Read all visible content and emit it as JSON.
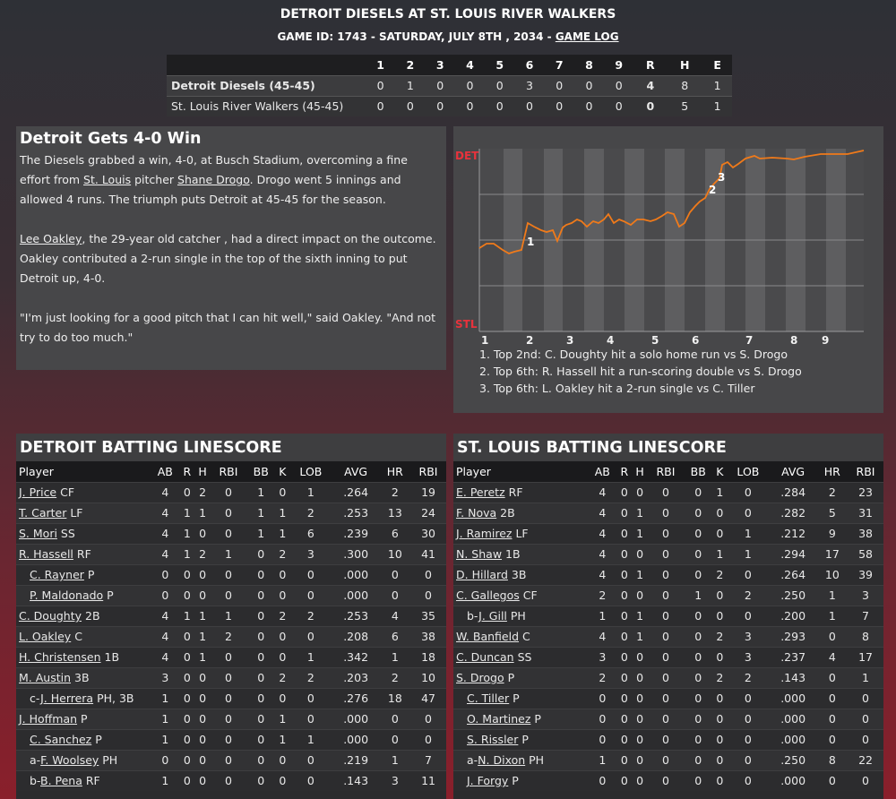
{
  "header": {
    "title": "DETROIT DIESELS AT ST. LOUIS RIVER WALKERS",
    "subtitle_prefix": "GAME ID: 1743 - SATURDAY, JULY 8TH , 2034 - ",
    "game_log_link": "GAME LOG"
  },
  "linescore": {
    "headers": [
      "1",
      "2",
      "3",
      "4",
      "5",
      "6",
      "7",
      "8",
      "9",
      "R",
      "H",
      "E"
    ],
    "teams": [
      {
        "name": "Detroit Diesels (45-45)",
        "values": [
          "0",
          "1",
          "0",
          "0",
          "0",
          "3",
          "0",
          "0",
          "0",
          "4",
          "8",
          "1"
        ]
      },
      {
        "name": "St. Louis River Walkers (45-45)",
        "values": [
          "0",
          "0",
          "0",
          "0",
          "0",
          "0",
          "0",
          "0",
          "0",
          "0",
          "5",
          "1"
        ]
      }
    ]
  },
  "story": {
    "headline": "Detroit Gets 4-0 Win",
    "p1_a": "The Diesels grabbed a win, 4-0, at Busch Stadium, overcoming a fine effort from ",
    "p1_link1": "St. Louis",
    "p1_b": " pitcher ",
    "p1_link2": "Shane Drogo",
    "p1_c": ". Drogo went 5 innings and allowed 4 runs. The triumph puts Detroit at 45-45 for the season.",
    "p2_link": "Lee Oakley",
    "p2_a": ", the 29-year old catcher , had a direct impact on the outcome. Oakley contributed a 2-run single in the top of the sixth inning to put Detroit up, 4-0.",
    "p3": "\"I'm just looking for a good pitch that I can hit well,\" said Oakley. \"And not try to do too much.\""
  },
  "chart": {
    "top_label": "DET",
    "bottom_label": "STL",
    "line_color": "#f07a1a",
    "label_color": "#e8323c",
    "innings": [
      "1",
      "2",
      "3",
      "4",
      "5",
      "6",
      "7",
      "8",
      "9"
    ],
    "markers": [
      "1",
      "2",
      "3"
    ],
    "notes": [
      "1. Top 2nd: C. Doughty hit a solo home run vs S. Drogo",
      "2. Top 6th: R. Hassell hit a run-scoring double vs S. Drogo",
      "3. Top 6th: L. Oakley hit a 2-run single vs C. Tiller"
    ]
  },
  "detroit": {
    "title": "DETROIT BATTING LINESCORE",
    "columns": [
      "Player",
      "AB",
      "R",
      "H",
      "RBI",
      "BB",
      "K",
      "LOB",
      "AVG",
      "HR",
      "RBI"
    ],
    "rows": [
      {
        "prefix": "",
        "name": "J. Price",
        "pos": "CF",
        "sub": false,
        "stats": [
          "4",
          "0",
          "2",
          "0",
          "1",
          "0",
          "1",
          ".264",
          "2",
          "19"
        ]
      },
      {
        "prefix": "",
        "name": "T. Carter",
        "pos": "LF",
        "sub": false,
        "stats": [
          "4",
          "1",
          "1",
          "0",
          "1",
          "1",
          "2",
          ".253",
          "13",
          "24"
        ]
      },
      {
        "prefix": "",
        "name": "S. Mori",
        "pos": "SS",
        "sub": false,
        "stats": [
          "4",
          "1",
          "0",
          "0",
          "1",
          "1",
          "6",
          ".239",
          "6",
          "30"
        ]
      },
      {
        "prefix": "",
        "name": "R. Hassell",
        "pos": "RF",
        "sub": false,
        "stats": [
          "4",
          "1",
          "2",
          "1",
          "0",
          "2",
          "3",
          ".300",
          "10",
          "41"
        ]
      },
      {
        "prefix": "",
        "name": "C. Rayner",
        "pos": "P",
        "sub": true,
        "stats": [
          "0",
          "0",
          "0",
          "0",
          "0",
          "0",
          "0",
          ".000",
          "0",
          "0"
        ]
      },
      {
        "prefix": "",
        "name": "P. Maldonado",
        "pos": "P",
        "sub": true,
        "stats": [
          "0",
          "0",
          "0",
          "0",
          "0",
          "0",
          "0",
          ".000",
          "0",
          "0"
        ]
      },
      {
        "prefix": "",
        "name": "C. Doughty",
        "pos": "2B",
        "sub": false,
        "stats": [
          "4",
          "1",
          "1",
          "1",
          "0",
          "2",
          "2",
          ".253",
          "4",
          "35"
        ]
      },
      {
        "prefix": "",
        "name": "L. Oakley",
        "pos": "C",
        "sub": false,
        "stats": [
          "4",
          "0",
          "1",
          "2",
          "0",
          "0",
          "0",
          ".208",
          "6",
          "38"
        ]
      },
      {
        "prefix": "",
        "name": "H. Christensen",
        "pos": "1B",
        "sub": false,
        "stats": [
          "4",
          "0",
          "1",
          "0",
          "0",
          "0",
          "1",
          ".342",
          "1",
          "18"
        ]
      },
      {
        "prefix": "",
        "name": "M. Austin",
        "pos": "3B",
        "sub": false,
        "stats": [
          "3",
          "0",
          "0",
          "0",
          "0",
          "2",
          "2",
          ".203",
          "2",
          "10"
        ]
      },
      {
        "prefix": "c-",
        "name": "J. Herrera",
        "pos": "PH, 3B",
        "sub": true,
        "stats": [
          "1",
          "0",
          "0",
          "0",
          "0",
          "0",
          "0",
          ".276",
          "18",
          "47"
        ]
      },
      {
        "prefix": "",
        "name": "J. Hoffman",
        "pos": "P",
        "sub": false,
        "stats": [
          "1",
          "0",
          "0",
          "0",
          "0",
          "1",
          "0",
          ".000",
          "0",
          "0"
        ]
      },
      {
        "prefix": "",
        "name": "C. Sanchez",
        "pos": "P",
        "sub": true,
        "stats": [
          "1",
          "0",
          "0",
          "0",
          "0",
          "1",
          "1",
          ".000",
          "0",
          "0"
        ]
      },
      {
        "prefix": "a-",
        "name": "F. Woolsey",
        "pos": "PH",
        "sub": true,
        "stats": [
          "0",
          "0",
          "0",
          "0",
          "0",
          "0",
          "0",
          ".219",
          "1",
          "7"
        ]
      },
      {
        "prefix": "b-",
        "name": "B. Pena",
        "pos": "RF",
        "sub": true,
        "stats": [
          "1",
          "0",
          "0",
          "0",
          "0",
          "0",
          "0",
          ".143",
          "3",
          "11"
        ]
      }
    ]
  },
  "stlouis": {
    "title": "ST. LOUIS BATTING LINESCORE",
    "columns": [
      "Player",
      "AB",
      "R",
      "H",
      "RBI",
      "BB",
      "K",
      "LOB",
      "AVG",
      "HR",
      "RBI"
    ],
    "rows": [
      {
        "prefix": "",
        "name": "E. Peretz",
        "pos": "RF",
        "sub": false,
        "stats": [
          "4",
          "0",
          "0",
          "0",
          "0",
          "1",
          "0",
          ".284",
          "2",
          "23"
        ]
      },
      {
        "prefix": "",
        "name": "F. Nova",
        "pos": "2B",
        "sub": false,
        "stats": [
          "4",
          "0",
          "1",
          "0",
          "0",
          "0",
          "0",
          ".282",
          "5",
          "31"
        ]
      },
      {
        "prefix": "",
        "name": "J. Ramirez",
        "pos": "LF",
        "sub": false,
        "stats": [
          "4",
          "0",
          "1",
          "0",
          "0",
          "0",
          "1",
          ".212",
          "9",
          "38"
        ]
      },
      {
        "prefix": "",
        "name": "N. Shaw",
        "pos": "1B",
        "sub": false,
        "stats": [
          "4",
          "0",
          "0",
          "0",
          "0",
          "1",
          "1",
          ".294",
          "17",
          "58"
        ]
      },
      {
        "prefix": "",
        "name": "D. Hillard",
        "pos": "3B",
        "sub": false,
        "stats": [
          "4",
          "0",
          "1",
          "0",
          "0",
          "2",
          "0",
          ".264",
          "10",
          "39"
        ]
      },
      {
        "prefix": "",
        "name": "C. Gallegos",
        "pos": "CF",
        "sub": false,
        "stats": [
          "2",
          "0",
          "0",
          "0",
          "1",
          "0",
          "2",
          ".250",
          "1",
          "3"
        ]
      },
      {
        "prefix": "b-",
        "name": "J. Gill",
        "pos": "PH",
        "sub": true,
        "stats": [
          "1",
          "0",
          "1",
          "0",
          "0",
          "0",
          "0",
          ".200",
          "1",
          "7"
        ]
      },
      {
        "prefix": "",
        "name": "W. Banfield",
        "pos": "C",
        "sub": false,
        "stats": [
          "4",
          "0",
          "1",
          "0",
          "0",
          "2",
          "3",
          ".293",
          "0",
          "8"
        ]
      },
      {
        "prefix": "",
        "name": "C. Duncan",
        "pos": "SS",
        "sub": false,
        "stats": [
          "3",
          "0",
          "0",
          "0",
          "0",
          "0",
          "3",
          ".237",
          "4",
          "17"
        ]
      },
      {
        "prefix": "",
        "name": "S. Drogo",
        "pos": "P",
        "sub": false,
        "stats": [
          "2",
          "0",
          "0",
          "0",
          "0",
          "2",
          "2",
          ".143",
          "0",
          "1"
        ]
      },
      {
        "prefix": "",
        "name": "C. Tiller",
        "pos": "P",
        "sub": true,
        "stats": [
          "0",
          "0",
          "0",
          "0",
          "0",
          "0",
          "0",
          ".000",
          "0",
          "0"
        ]
      },
      {
        "prefix": "",
        "name": "O. Martinez",
        "pos": "P",
        "sub": true,
        "stats": [
          "0",
          "0",
          "0",
          "0",
          "0",
          "0",
          "0",
          ".000",
          "0",
          "0"
        ]
      },
      {
        "prefix": "",
        "name": "S. Rissler",
        "pos": "P",
        "sub": true,
        "stats": [
          "0",
          "0",
          "0",
          "0",
          "0",
          "0",
          "0",
          ".000",
          "0",
          "0"
        ]
      },
      {
        "prefix": "a-",
        "name": "N. Dixon",
        "pos": "PH",
        "sub": true,
        "stats": [
          "1",
          "0",
          "0",
          "0",
          "0",
          "0",
          "0",
          ".250",
          "8",
          "22"
        ]
      },
      {
        "prefix": "",
        "name": "J. Forgy",
        "pos": "P",
        "sub": true,
        "stats": [
          "0",
          "0",
          "0",
          "0",
          "0",
          "0",
          "0",
          ".000",
          "0",
          "0"
        ]
      }
    ]
  }
}
